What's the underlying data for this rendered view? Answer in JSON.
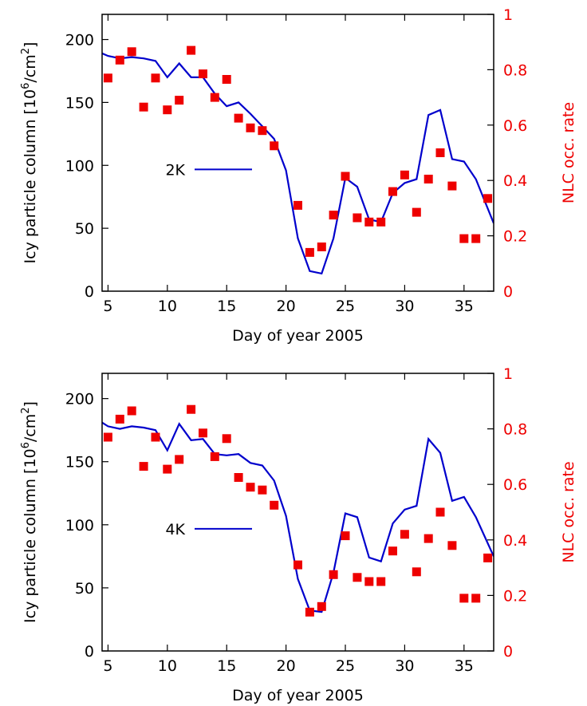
{
  "colors": {
    "model_line": "#0000cc",
    "observation_points": "#ee0000",
    "axis": "#000000",
    "right_axis_text": "#ee0000"
  },
  "chart_data": [
    {
      "type": "line",
      "legend_label": "2K",
      "xlabel": "Day of year 2005",
      "ylabel": "Icy particle column [10⁶/cm²]",
      "ylabel_base": "Icy particle column [10",
      "ylabel_exp1": "6",
      "ylabel_mid": "/cm",
      "ylabel_exp2": "2",
      "ylabel_end": "]",
      "y2label": "NLC occ. rate",
      "xlim": [
        4.5,
        37.5
      ],
      "ylim": [
        0,
        220
      ],
      "y2lim": [
        0,
        1
      ],
      "xticks": [
        "5",
        "10",
        "15",
        "20",
        "25",
        "30",
        "35"
      ],
      "yticks": [
        "0",
        "50",
        "100",
        "150",
        "200"
      ],
      "y2ticks": [
        "0",
        "0.2",
        "0.4",
        "0.6",
        "0.8",
        "1"
      ],
      "legend_position": "center-left",
      "line": {
        "x": [
          4.5,
          5,
          6,
          7,
          8,
          9,
          10,
          11,
          12,
          13,
          14,
          15,
          16,
          17,
          18,
          19,
          20,
          21,
          22,
          23,
          24,
          25,
          26,
          27,
          28,
          29,
          30,
          31,
          32,
          33,
          34,
          35,
          36,
          37.5
        ],
        "y": [
          189,
          187,
          185,
          186,
          185,
          183,
          170,
          181,
          170,
          170,
          157,
          147,
          150,
          141,
          131,
          121,
          96,
          42,
          16,
          14,
          42,
          90,
          83,
          57,
          55,
          78,
          86,
          89,
          140,
          144,
          105,
          103,
          89,
          54
        ]
      },
      "points": {
        "x": [
          5,
          6,
          7,
          8,
          9,
          10,
          11,
          12,
          13,
          14,
          15,
          16,
          17,
          18,
          19,
          21,
          22,
          23,
          24,
          25,
          26,
          27,
          28,
          29,
          30,
          31,
          32,
          33,
          34,
          35,
          36,
          37
        ],
        "y": [
          0.77,
          0.835,
          0.865,
          0.665,
          0.77,
          0.655,
          0.69,
          0.87,
          0.785,
          0.7,
          0.765,
          0.625,
          0.59,
          0.58,
          0.525,
          0.31,
          0.14,
          0.16,
          0.275,
          0.415,
          0.265,
          0.25,
          0.25,
          0.36,
          0.42,
          0.285,
          0.405,
          0.5,
          0.38,
          0.19,
          0.19,
          0.335
        ]
      }
    },
    {
      "type": "line",
      "legend_label": "4K",
      "xlabel": "Day of year 2005",
      "ylabel": "Icy particle column [10⁶/cm²]",
      "ylabel_base": "Icy particle column [10",
      "ylabel_exp1": "6",
      "ylabel_mid": "/cm",
      "ylabel_exp2": "2",
      "ylabel_end": "]",
      "y2label": "NLC occ. rate",
      "xlim": [
        4.5,
        37.5
      ],
      "ylim": [
        0,
        220
      ],
      "y2lim": [
        0,
        1
      ],
      "xticks": [
        "5",
        "10",
        "15",
        "20",
        "25",
        "30",
        "35"
      ],
      "yticks": [
        "0",
        "50",
        "100",
        "150",
        "200"
      ],
      "y2ticks": [
        "0",
        "0.2",
        "0.4",
        "0.6",
        "0.8",
        "1"
      ],
      "legend_position": "center-left",
      "line": {
        "x": [
          4.5,
          5,
          6,
          7,
          8,
          9,
          10,
          11,
          12,
          13,
          14,
          15,
          16,
          17,
          18,
          19,
          20,
          21,
          22,
          23,
          24,
          25,
          26,
          27,
          28,
          29,
          30,
          31,
          32,
          33,
          34,
          35,
          36,
          37.5
        ],
        "y": [
          181,
          178,
          176,
          178,
          177,
          175,
          159,
          180,
          167,
          168,
          156,
          155,
          156,
          149,
          147,
          135,
          107,
          57,
          32,
          31,
          62,
          109,
          106,
          74,
          71,
          101,
          112,
          115,
          168,
          157,
          119,
          122,
          106,
          75
        ]
      },
      "points": {
        "x": [
          5,
          6,
          7,
          8,
          9,
          10,
          11,
          12,
          13,
          14,
          15,
          16,
          17,
          18,
          19,
          21,
          22,
          23,
          24,
          25,
          26,
          27,
          28,
          29,
          30,
          31,
          32,
          33,
          34,
          35,
          36,
          37
        ],
        "y": [
          0.77,
          0.835,
          0.865,
          0.665,
          0.77,
          0.655,
          0.69,
          0.87,
          0.785,
          0.7,
          0.765,
          0.625,
          0.59,
          0.58,
          0.525,
          0.31,
          0.14,
          0.16,
          0.275,
          0.415,
          0.265,
          0.25,
          0.25,
          0.36,
          0.42,
          0.285,
          0.405,
          0.5,
          0.38,
          0.19,
          0.19,
          0.335
        ]
      }
    }
  ]
}
